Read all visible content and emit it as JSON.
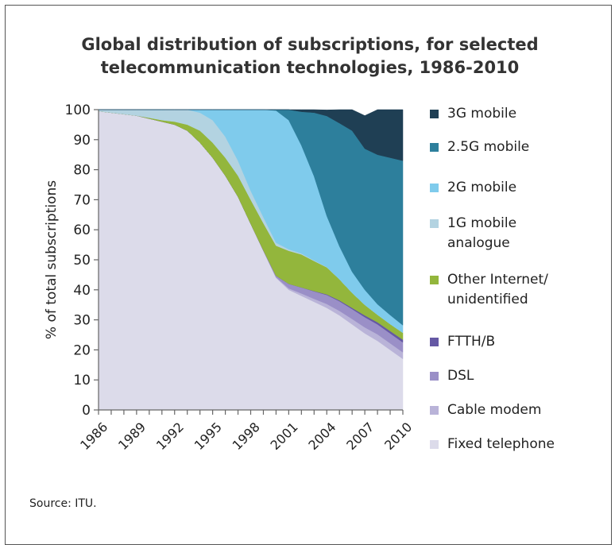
{
  "header": {
    "title_line1": "Global distribution of subscriptions, for selected",
    "title_line2": "telecommunication technologies, 1986-2010"
  },
  "footer": {
    "source": "Source: ITU."
  },
  "chart_data": {
    "type": "area",
    "stacked": true,
    "title": "Global distribution of subscriptions, for selected telecommunication technologies, 1986-2010",
    "xlabel": "",
    "ylabel": "% of total subscriptions",
    "ylim": [
      0,
      100
    ],
    "yticks": [
      0,
      10,
      20,
      30,
      40,
      50,
      60,
      70,
      80,
      90,
      100
    ],
    "xticks": [
      1986,
      1989,
      1992,
      1995,
      1998,
      2001,
      2004,
      2007,
      2010
    ],
    "xlim": [
      1986,
      2010
    ],
    "legend_position": "right",
    "x": [
      1986,
      1987,
      1988,
      1989,
      1990,
      1991,
      1992,
      1993,
      1994,
      1995,
      1996,
      1997,
      1998,
      1999,
      2000,
      2001,
      2002,
      2003,
      2004,
      2005,
      2006,
      2007,
      2008,
      2009,
      2010
    ],
    "series": [
      {
        "name": "Fixed telephone",
        "color": "#dcdbea",
        "values": [
          99.5,
          99,
          98.5,
          98,
          97,
          96,
          95,
          93,
          89,
          84,
          78,
          71,
          62,
          53,
          44,
          40,
          38,
          36,
          34,
          31.5,
          28.5,
          25.5,
          23,
          20,
          17
        ]
      },
      {
        "name": "Cable modem",
        "color": "#b9b3d8",
        "values": [
          0,
          0,
          0,
          0,
          0,
          0,
          0,
          0,
          0,
          0,
          0,
          0,
          0,
          0,
          0.2,
          0.5,
          0.8,
          1,
          1.3,
          1.5,
          1.8,
          2,
          2.2,
          2.2,
          2.2
        ]
      },
      {
        "name": "DSL",
        "color": "#9a8fc7",
        "values": [
          0,
          0,
          0,
          0,
          0,
          0,
          0,
          0,
          0,
          0,
          0,
          0,
          0,
          0.2,
          0.5,
          1.5,
          2,
          2.5,
          3,
          3.2,
          3.3,
          3.4,
          3.3,
          3.3,
          3.3
        ]
      },
      {
        "name": "FTTH/B",
        "color": "#6558a4",
        "values": [
          0,
          0,
          0,
          0,
          0,
          0,
          0,
          0,
          0,
          0,
          0,
          0,
          0,
          0,
          0,
          0,
          0,
          0.1,
          0.2,
          0.3,
          0.4,
          0.6,
          0.7,
          0.8,
          0.9
        ]
      },
      {
        "name": "Other Internet/ unidentified",
        "color": "#93b63c",
        "values": [
          0,
          0,
          0,
          0,
          0.3,
          0.5,
          1,
          2,
          4,
          5,
          6,
          7,
          8,
          9,
          10,
          11,
          11,
          10,
          9,
          7,
          5,
          3.5,
          2.5,
          2.3,
          2.3
        ]
      },
      {
        "name": "1G mobile analogue",
        "color": "#b3d3e1",
        "values": [
          0.5,
          1,
          1.5,
          2,
          2.6,
          3.4,
          4,
          5,
          6,
          7.5,
          7,
          5,
          3,
          2,
          1,
          0.5,
          0.3,
          0.2,
          0.1,
          0,
          0,
          0,
          0,
          0,
          0
        ]
      },
      {
        "name": "2G mobile",
        "color": "#7fcbec",
        "values": [
          0,
          0,
          0,
          0,
          0.1,
          0.1,
          0,
          0,
          1,
          3.5,
          9,
          17,
          27,
          35.8,
          44,
          43,
          36,
          28,
          17,
          11,
          7,
          5,
          3.5,
          3,
          2.5
        ]
      },
      {
        "name": "2.5G mobile",
        "color": "#2d7f9c",
        "values": [
          0,
          0,
          0,
          0,
          0,
          0,
          0,
          0,
          0,
          0,
          0,
          0,
          0,
          0,
          0.3,
          3.5,
          11.2,
          21.2,
          33.3,
          41,
          47,
          47,
          49.8,
          52.4,
          54.8
        ]
      },
      {
        "name": "3G mobile",
        "color": "#1f3f54",
        "values": [
          0,
          0,
          0,
          0,
          0,
          0,
          0,
          0,
          0,
          0,
          0,
          0,
          0,
          0,
          0,
          0,
          0.7,
          1,
          2,
          4.5,
          7,
          11,
          15,
          16,
          17
        ]
      }
    ]
  },
  "legend": {
    "items": [
      {
        "label": "3G mobile",
        "color": "#1f3f54"
      },
      {
        "label": "2.5G mobile",
        "color": "#2d7f9c"
      },
      {
        "label": "2G mobile",
        "color": "#7fcbec"
      },
      {
        "label": "1G mobile",
        "label2": "analogue",
        "color": "#b3d3e1"
      },
      {
        "label": "Other Internet/",
        "label2": "unidentified",
        "color": "#93b63c"
      },
      {
        "label": "FTTH/B",
        "color": "#6558a4"
      },
      {
        "label": "DSL",
        "color": "#9a8fc7"
      },
      {
        "label": "Cable modem",
        "color": "#b9b3d8"
      },
      {
        "label": "Fixed telephone",
        "color": "#dcdbea"
      }
    ]
  }
}
